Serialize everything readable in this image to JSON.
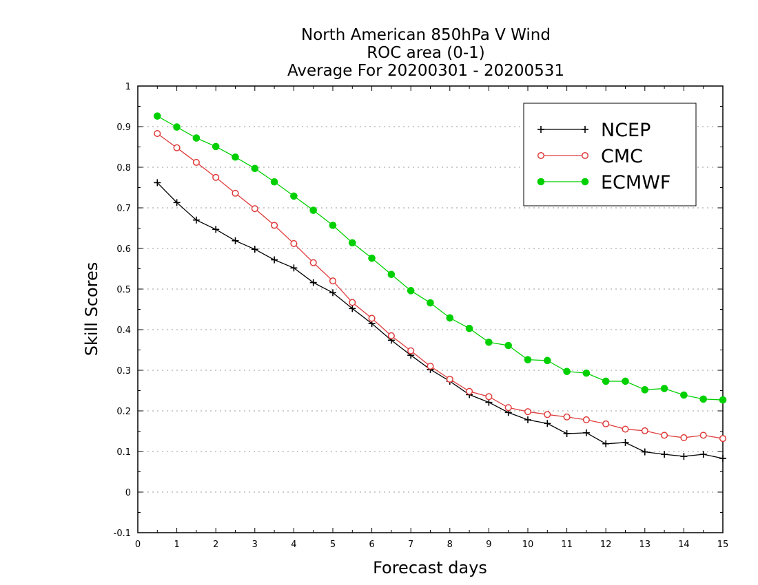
{
  "chart_data": {
    "type": "line",
    "title": [
      "North American 850hPa V Wind",
      "ROC area (0-1)",
      "Average For 20200301 - 20200531"
    ],
    "xlabel": "Forecast days",
    "ylabel": "Skill Scores",
    "xlim": [
      0,
      15
    ],
    "ylim": [
      -0.1,
      1
    ],
    "xticks": [
      "0",
      "1",
      "2",
      "3",
      "4",
      "5",
      "6",
      "7",
      "8",
      "9",
      "10",
      "11",
      "12",
      "13",
      "14",
      "15"
    ],
    "yticks": [
      "-0.1",
      "0",
      "0.1",
      "0.2",
      "0.3",
      "0.4",
      "0.5",
      "0.6",
      "0.7",
      "0.8",
      "0.9",
      "1"
    ],
    "grid": true,
    "legend_position": "top-right",
    "x": [
      0.5,
      1,
      1.5,
      2,
      2.5,
      3,
      3.5,
      4,
      4.5,
      5,
      5.5,
      6,
      6.5,
      7,
      7.5,
      8,
      8.5,
      9,
      9.5,
      10,
      10.5,
      11,
      11.5,
      12,
      12.5,
      13,
      13.5,
      14,
      14.5,
      15
    ],
    "series": [
      {
        "name": "NCEP",
        "color": "#000000",
        "marker": "plus",
        "values": [
          0.762,
          0.713,
          0.67,
          0.647,
          0.619,
          0.598,
          0.572,
          0.552,
          0.516,
          0.491,
          0.452,
          0.415,
          0.374,
          0.337,
          0.302,
          0.273,
          0.24,
          0.221,
          0.196,
          0.178,
          0.169,
          0.144,
          0.146,
          0.119,
          0.122,
          0.099,
          0.093,
          0.088,
          0.093,
          0.083
        ]
      },
      {
        "name": "CMC",
        "color": "#e03c3c",
        "marker": "open-circle",
        "values": [
          0.883,
          0.848,
          0.812,
          0.775,
          0.736,
          0.698,
          0.657,
          0.612,
          0.565,
          0.52,
          0.467,
          0.428,
          0.385,
          0.348,
          0.31,
          0.278,
          0.248,
          0.235,
          0.208,
          0.198,
          0.191,
          0.185,
          0.178,
          0.168,
          0.155,
          0.151,
          0.14,
          0.134,
          0.14,
          0.132
        ]
      },
      {
        "name": "ECMWF",
        "color": "#00d000",
        "marker": "filled-circle",
        "values": [
          0.926,
          0.899,
          0.872,
          0.851,
          0.825,
          0.797,
          0.764,
          0.729,
          0.694,
          0.657,
          0.614,
          0.576,
          0.536,
          0.496,
          0.466,
          0.429,
          0.403,
          0.369,
          0.361,
          0.326,
          0.324,
          0.297,
          0.293,
          0.273,
          0.273,
          0.252,
          0.255,
          0.239,
          0.229,
          0.227
        ]
      }
    ]
  }
}
